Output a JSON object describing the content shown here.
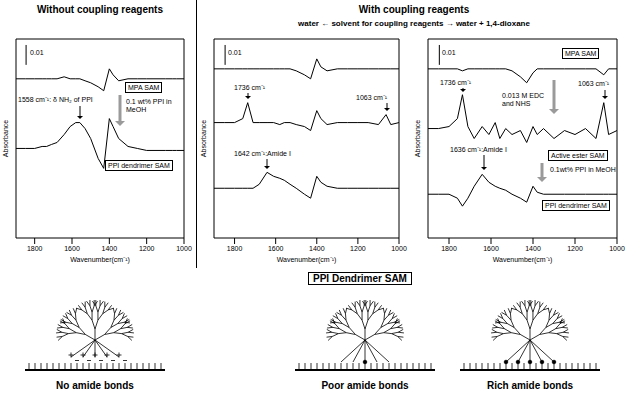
{
  "headers": {
    "left": "Without coupling reagents",
    "right": "With coupling reagents",
    "solvent": "water ← solvent for coupling reagents → water + 1,4-dioxane"
  },
  "chart_data": [
    {
      "type": "line",
      "x_label": "Wavenumber(cm⁻¹)",
      "y_label": "Absorbance",
      "x": [
        1900,
        1850,
        1800,
        1760,
        1736,
        1710,
        1680,
        1642,
        1610,
        1580,
        1558,
        1530,
        1500,
        1460,
        1430,
        1400,
        1380,
        1350,
        1300,
        1250,
        1200,
        1150,
        1100,
        1063,
        1040,
        1000
      ],
      "xlim": [
        1900,
        1000
      ],
      "xticks": [
        1800,
        1600,
        1400,
        1200,
        1000
      ],
      "ylim": [
        0,
        0.1
      ],
      "tick_labels": "x",
      "scale_bar": 0.01,
      "series": [
        {
          "name": "MPA SAM",
          "color": "#000000",
          "values": [
            0.08,
            0.08,
            0.08,
            0.08,
            0.08,
            0.08,
            0.08,
            0.081,
            0.08,
            0.08,
            0.08,
            0.079,
            0.078,
            0.076,
            0.074,
            0.085,
            0.082,
            0.079,
            0.08,
            0.08,
            0.08,
            0.08,
            0.08,
            0.08,
            0.08,
            0.08
          ]
        },
        {
          "name": "PPI dendrimer SAM",
          "color": "#000000",
          "values": [
            0.045,
            0.045,
            0.045,
            0.046,
            0.046,
            0.047,
            0.048,
            0.052,
            0.056,
            0.058,
            0.058,
            0.055,
            0.05,
            0.04,
            0.035,
            0.06,
            0.056,
            0.05,
            0.046,
            0.045,
            0.044,
            0.044,
            0.044,
            0.044,
            0.044,
            0.044
          ]
        }
      ],
      "annotations": [
        "1558 cm⁻¹: δ NH₂ of PPI",
        "0.1 wt% PPI in MeOH"
      ]
    },
    {
      "type": "line",
      "x_label": "Wavenumber(cm⁻¹)",
      "y_label": "Absorbance",
      "x": [
        1900,
        1850,
        1800,
        1760,
        1736,
        1710,
        1680,
        1642,
        1610,
        1580,
        1558,
        1530,
        1500,
        1460,
        1430,
        1400,
        1380,
        1350,
        1300,
        1250,
        1200,
        1150,
        1100,
        1063,
        1040,
        1000
      ],
      "xlim": [
        1900,
        1000
      ],
      "xticks": [
        1800,
        1600,
        1400,
        1200,
        1000
      ],
      "ylim": [
        0,
        0.1
      ],
      "tick_labels": "x",
      "scale_bar": 0.01,
      "series": [
        {
          "color": "#000000",
          "values": [
            0.085,
            0.085,
            0.085,
            0.085,
            0.085,
            0.085,
            0.085,
            0.085,
            0.085,
            0.085,
            0.085,
            0.085,
            0.084,
            0.082,
            0.08,
            0.09,
            0.086,
            0.084,
            0.085,
            0.085,
            0.085,
            0.085,
            0.085,
            0.085,
            0.085,
            0.085
          ]
        },
        {
          "color": "#000000",
          "values": [
            0.058,
            0.058,
            0.058,
            0.06,
            0.068,
            0.058,
            0.058,
            0.058,
            0.058,
            0.057,
            0.058,
            0.058,
            0.057,
            0.056,
            0.054,
            0.064,
            0.06,
            0.057,
            0.058,
            0.058,
            0.058,
            0.058,
            0.057,
            0.062,
            0.057,
            0.058
          ]
        },
        {
          "color": "#000000",
          "values": [
            0.025,
            0.025,
            0.025,
            0.025,
            0.025,
            0.025,
            0.027,
            0.033,
            0.031,
            0.03,
            0.029,
            0.027,
            0.025,
            0.022,
            0.02,
            0.031,
            0.028,
            0.026,
            0.025,
            0.025,
            0.025,
            0.025,
            0.025,
            0.025,
            0.025,
            0.025
          ]
        }
      ],
      "annotations": [
        "1736 cm⁻¹",
        "1063 cm⁻¹",
        "1642 cm⁻¹:Amide I"
      ]
    },
    {
      "type": "line",
      "x_label": "Wavenumber(cm⁻¹)",
      "y_label": "Absorbance",
      "x": [
        1900,
        1850,
        1800,
        1760,
        1736,
        1710,
        1680,
        1642,
        1610,
        1580,
        1558,
        1530,
        1500,
        1460,
        1430,
        1400,
        1380,
        1350,
        1300,
        1250,
        1200,
        1150,
        1100,
        1063,
        1040,
        1000
      ],
      "xlim": [
        1900,
        1000
      ],
      "xticks": [
        1800,
        1600,
        1400,
        1200,
        1000
      ],
      "ylim": [
        0,
        0.1
      ],
      "tick_labels": "x",
      "scale_bar": 0.01,
      "series": [
        {
          "name": "MPA SAM",
          "color": "#000000",
          "values": [
            0.085,
            0.085,
            0.085,
            0.085,
            0.084,
            0.085,
            0.085,
            0.085,
            0.085,
            0.085,
            0.085,
            0.085,
            0.084,
            0.081,
            0.078,
            0.083,
            0.085,
            0.085,
            0.085,
            0.085,
            0.085,
            0.085,
            0.085,
            0.082,
            0.085,
            0.085
          ]
        },
        {
          "name": "Active ester SAM",
          "color": "#000000",
          "values": [
            0.055,
            0.055,
            0.056,
            0.06,
            0.072,
            0.056,
            0.05,
            0.056,
            0.052,
            0.058,
            0.05,
            0.055,
            0.052,
            0.054,
            0.048,
            0.056,
            0.052,
            0.055,
            0.05,
            0.054,
            0.052,
            0.055,
            0.05,
            0.068,
            0.052,
            0.054
          ]
        },
        {
          "name": "PPI dendrimer SAM",
          "color": "#000000",
          "values": [
            0.022,
            0.022,
            0.022,
            0.02,
            0.016,
            0.02,
            0.026,
            0.032,
            0.028,
            0.026,
            0.025,
            0.024,
            0.022,
            0.02,
            0.018,
            0.026,
            0.023,
            0.022,
            0.022,
            0.022,
            0.022,
            0.022,
            0.022,
            0.022,
            0.022,
            0.022
          ]
        }
      ],
      "annotations": [
        "1736 cm⁻¹",
        "1063 cm⁻¹",
        "0.013 M EDC and NHS",
        "1636 cm⁻¹:Amide I",
        "0.1wt% PPI in MeOH"
      ]
    }
  ],
  "schematic": {
    "title": "PPI Dendrimer SAM",
    "panels": [
      "No amide bonds",
      "Poor amide bonds",
      "Rich amide bonds"
    ]
  }
}
